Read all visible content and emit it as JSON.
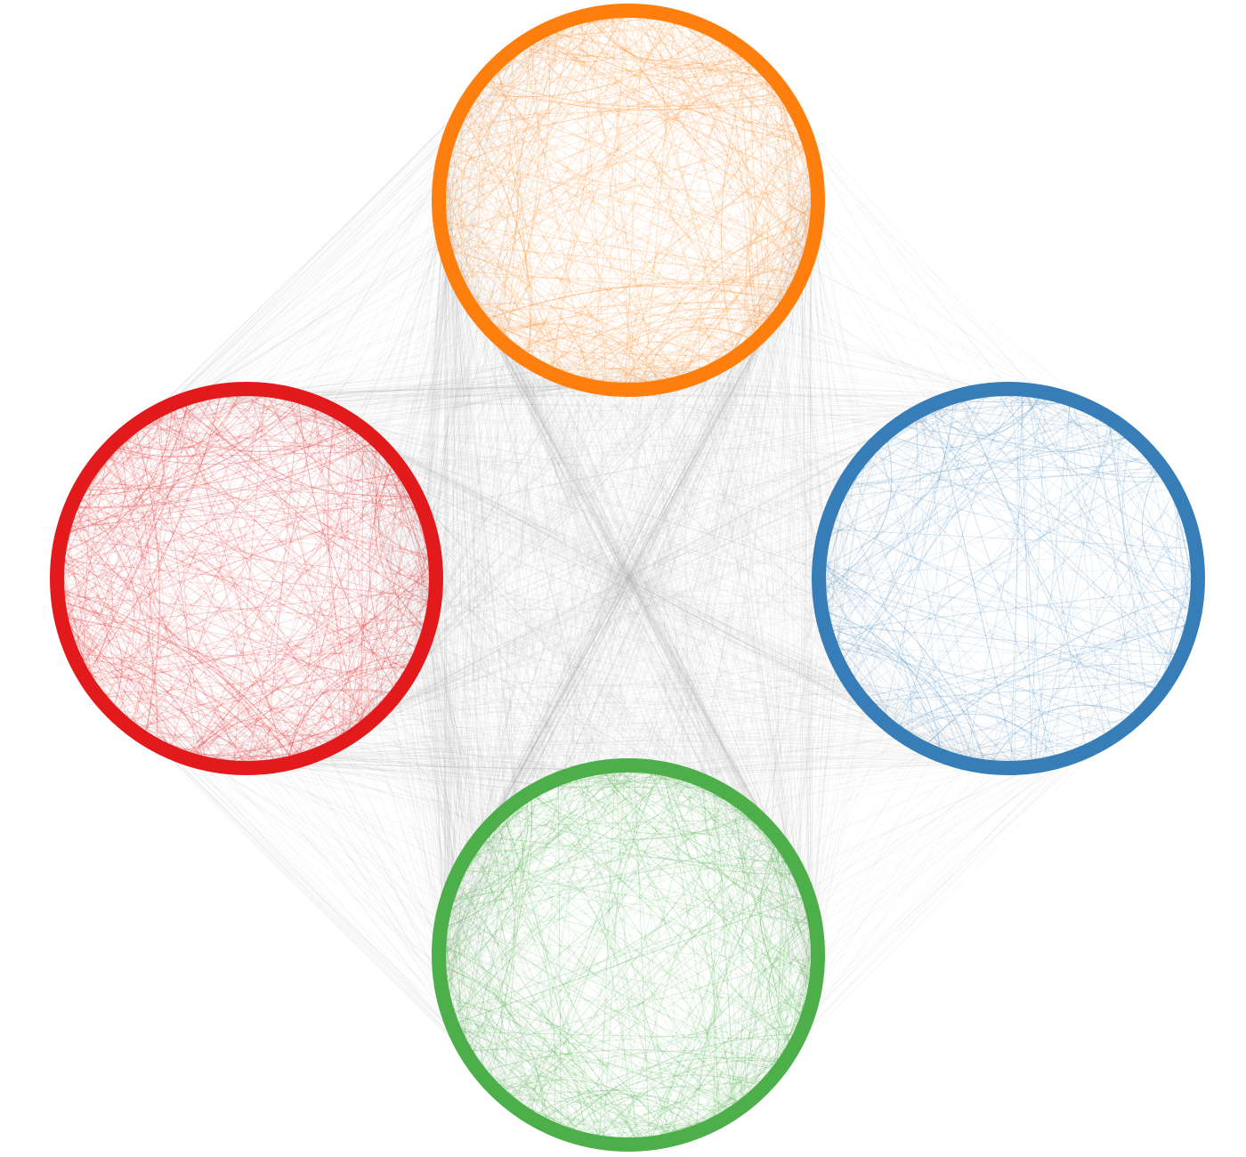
{
  "diagram": {
    "type": "circular-community-network",
    "communities": [
      {
        "id": "top",
        "position": "top",
        "color": "#ff7f0e",
        "relative_internal_density": 0.85
      },
      {
        "id": "left",
        "position": "left",
        "color": "#e31a1c",
        "relative_internal_density": 0.9
      },
      {
        "id": "right",
        "position": "right",
        "color": "#377eb8",
        "relative_internal_density": 0.45
      },
      {
        "id": "bottom",
        "position": "bottom",
        "color": "#4daf4a",
        "relative_internal_density": 1.0
      }
    ],
    "inter_community_edge_color": "#9e9e9e",
    "inter_community_links": [
      {
        "from": "top",
        "to": "bottom",
        "relative_weight": 1.0
      },
      {
        "from": "top",
        "to": "left",
        "relative_weight": 0.6
      },
      {
        "from": "left",
        "to": "bottom",
        "relative_weight": 0.6
      },
      {
        "from": "top",
        "to": "right",
        "relative_weight": 0.25
      },
      {
        "from": "right",
        "to": "bottom",
        "relative_weight": 0.25
      },
      {
        "from": "left",
        "to": "right",
        "relative_weight": 0.45
      }
    ]
  }
}
